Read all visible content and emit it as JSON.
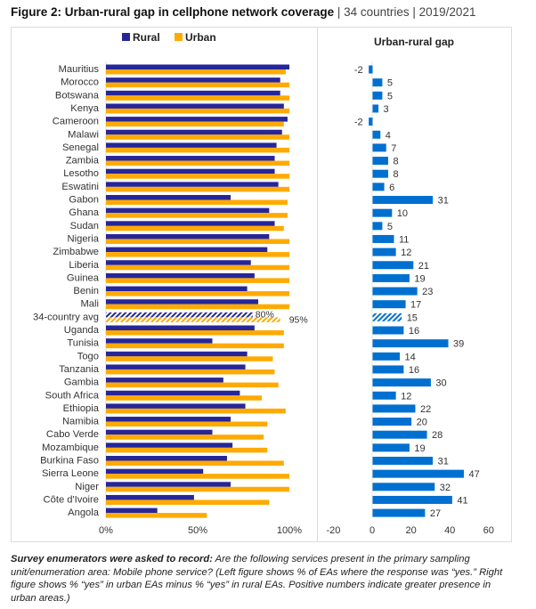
{
  "figure": {
    "title_bold": "Figure 2: Urban-rural gap in cellphone network coverage",
    "title_rest": " | 34 countries | 2019/2021"
  },
  "note": {
    "lead": "Survey enumerators were asked to record:",
    "text": " Are the following services present in the primary sampling unit/enumeration area: Mobile phone service? (Left figure shows % of EAs where the response was “yes.” Right figure shows % “yes” in urban EAs minus % “yes” in rural EAs. Positive numbers indicate greater presence in urban areas.)"
  },
  "colors": {
    "rural": "#262699",
    "urban": "#FFAA00",
    "gap": "#0070D0",
    "panel_border": "#dcdcdc"
  },
  "chart_data": [
    {
      "type": "bar",
      "orientation": "horizontal",
      "title": "",
      "legend": [
        "Rural",
        "Urban"
      ],
      "legend_position": "top-center",
      "categories": [
        "Mauritius",
        "Morocco",
        "Botswana",
        "Kenya",
        "Cameroon",
        "Malawi",
        "Senegal",
        "Zambia",
        "Lesotho",
        "Eswatini",
        "Gabon",
        "Ghana",
        "Sudan",
        "Nigeria",
        "Zimbabwe",
        "Liberia",
        "Guinea",
        "Benin",
        "Mali",
        "34-country avg",
        "Uganda",
        "Tunisia",
        "Togo",
        "Tanzania",
        "Gambia",
        "South Africa",
        "Ethiopia",
        "Namibia",
        "Cabo Verde",
        "Mozambique",
        "Burkina Faso",
        "Sierra Leone",
        "Niger",
        "Côte d'Ivoire",
        "Angola"
      ],
      "series": [
        {
          "name": "Rural",
          "values": [
            100,
            95,
            95,
            97,
            99,
            96,
            93,
            92,
            92,
            94,
            68,
            89,
            92,
            89,
            88,
            79,
            81,
            77,
            83,
            80,
            81,
            58,
            77,
            76,
            64,
            73,
            76,
            68,
            58,
            69,
            66,
            53,
            68,
            48,
            28
          ]
        },
        {
          "name": "Urban",
          "values": [
            98,
            100,
            100,
            100,
            97,
            100,
            100,
            100,
            100,
            100,
            99,
            99,
            97,
            100,
            100,
            100,
            100,
            100,
            100,
            95,
            97,
            97,
            91,
            92,
            94,
            85,
            98,
            88,
            86,
            88,
            97,
            100,
            100,
            89,
            55
          ]
        }
      ],
      "highlight": {
        "category": "34-country avg",
        "pattern": "hatched",
        "labels": {
          "Rural": "80%",
          "Urban": "95%"
        }
      },
      "xlim": [
        0,
        100
      ],
      "xticks": [
        "0%",
        "50%",
        "100%"
      ],
      "xlabel": "",
      "ylabel": ""
    },
    {
      "type": "bar",
      "orientation": "horizontal",
      "title": "Urban-rural gap",
      "categories": [
        "Mauritius",
        "Morocco",
        "Botswana",
        "Kenya",
        "Cameroon",
        "Malawi",
        "Senegal",
        "Zambia",
        "Lesotho",
        "Eswatini",
        "Gabon",
        "Ghana",
        "Sudan",
        "Nigeria",
        "Zimbabwe",
        "Liberia",
        "Guinea",
        "Benin",
        "Mali",
        "34-country avg",
        "Uganda",
        "Tunisia",
        "Togo",
        "Tanzania",
        "Gambia",
        "South Africa",
        "Ethiopia",
        "Namibia",
        "Cabo Verde",
        "Mozambique",
        "Burkina Faso",
        "Sierra Leone",
        "Niger",
        "Côte d'Ivoire",
        "Angola"
      ],
      "values": [
        -2,
        5,
        5,
        3,
        -2,
        4,
        7,
        8,
        8,
        6,
        31,
        10,
        5,
        11,
        12,
        21,
        19,
        23,
        17,
        15,
        16,
        39,
        14,
        16,
        30,
        12,
        22,
        20,
        28,
        19,
        31,
        47,
        32,
        41,
        27
      ],
      "highlight": {
        "category": "34-country avg",
        "pattern": "hatched"
      },
      "xlim": [
        -20,
        60
      ],
      "xticks": [
        "-20",
        "0",
        "20",
        "40",
        "60"
      ],
      "xlabel": "",
      "ylabel": ""
    }
  ]
}
